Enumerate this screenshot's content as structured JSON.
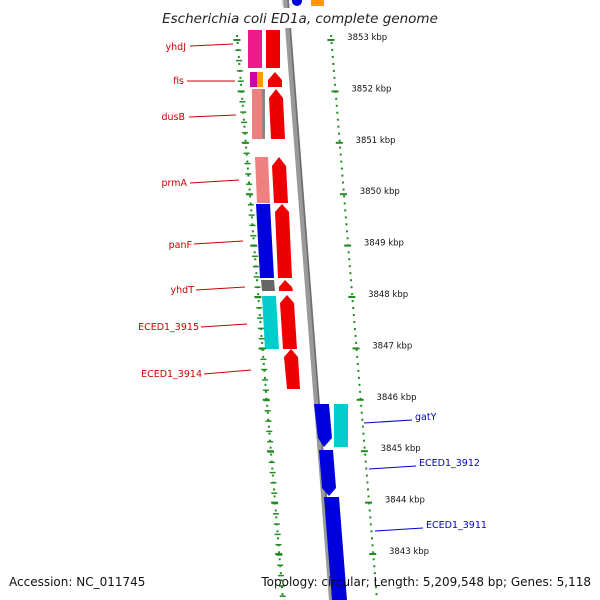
{
  "title": "Escherichia coli ED1a, complete genome",
  "footer": {
    "accession": "Accession: NC_011745",
    "topology": "Topology: circular; Length: 5,209,548 bp; Genes: 5,118"
  },
  "colors": {
    "strand_left": "#cc0000",
    "strand_right": "#0000cc",
    "tick": "#228b22",
    "backbone": "#888888"
  },
  "kbp_ticks": [
    "3853 kbp",
    "3852 kbp",
    "3851 kbp",
    "3850 kbp",
    "3849 kbp",
    "3848 kbp",
    "3847 kbp",
    "3846 kbp",
    "3845 kbp",
    "3844 kbp",
    "3843 kbp"
  ],
  "genes_left": [
    {
      "label": "yhdJ"
    },
    {
      "label": "fis"
    },
    {
      "label": "dusB"
    },
    {
      "label": "prmA"
    },
    {
      "label": "panF"
    },
    {
      "label": "yhdT"
    },
    {
      "label": "ECED1_3915"
    },
    {
      "label": "ECED1_3914"
    }
  ],
  "genes_right": [
    {
      "label": "gatY"
    },
    {
      "label": "ECED1_3912"
    },
    {
      "label": "ECED1_3911"
    }
  ]
}
